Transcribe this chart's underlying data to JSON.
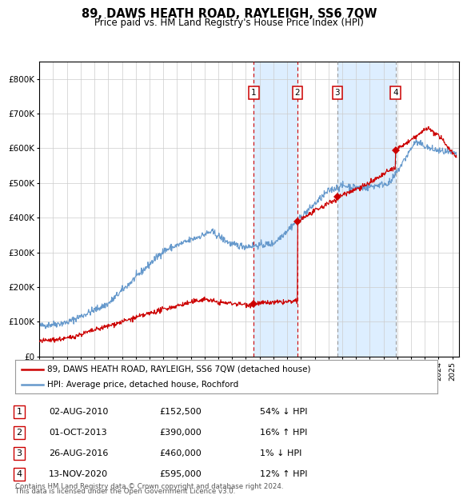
{
  "title": "89, DAWS HEATH ROAD, RAYLEIGH, SS6 7QW",
  "subtitle": "Price paid vs. HM Land Registry's House Price Index (HPI)",
  "legend_line1": "89, DAWS HEATH ROAD, RAYLEIGH, SS6 7QW (detached house)",
  "legend_line2": "HPI: Average price, detached house, Rochford",
  "footnote1": "Contains HM Land Registry data © Crown copyright and database right 2024.",
  "footnote2": "This data is licensed under the Open Government Licence v3.0.",
  "hpi_color": "#6699cc",
  "price_color": "#cc0000",
  "background_color": "#ffffff",
  "plot_bg_color": "#ffffff",
  "shade_color": "#ddeeff",
  "ylim": [
    0,
    850000
  ],
  "yticks": [
    0,
    100000,
    200000,
    300000,
    400000,
    500000,
    600000,
    700000,
    800000
  ],
  "ytick_labels": [
    "£0",
    "£100K",
    "£200K",
    "£300K",
    "£400K",
    "£500K",
    "£600K",
    "£700K",
    "£800K"
  ],
  "xlim_start": 1995.0,
  "xlim_end": 2025.5,
  "purchases": [
    {
      "num": 1,
      "date_num": 2010.58,
      "price": 152500,
      "label": "1",
      "date_str": "02-AUG-2010",
      "price_str": "£152,500",
      "pct": "54%",
      "dir": "↓",
      "vline_color": "#cc0000",
      "vline_dash": true
    },
    {
      "num": 2,
      "date_num": 2013.75,
      "price": 390000,
      "label": "2",
      "date_str": "01-OCT-2013",
      "price_str": "£390,000",
      "pct": "16%",
      "dir": "↑",
      "vline_color": "#cc0000",
      "vline_dash": true
    },
    {
      "num": 3,
      "date_num": 2016.65,
      "price": 460000,
      "label": "3",
      "date_str": "26-AUG-2016",
      "price_str": "£460,000",
      "pct": "1%",
      "dir": "↓",
      "vline_color": "#999999",
      "vline_dash": true
    },
    {
      "num": 4,
      "date_num": 2020.87,
      "price": 595000,
      "label": "4",
      "date_str": "13-NOV-2020",
      "price_str": "£595,000",
      "pct": "12%",
      "dir": "↑",
      "vline_color": "#999999",
      "vline_dash": true
    }
  ]
}
